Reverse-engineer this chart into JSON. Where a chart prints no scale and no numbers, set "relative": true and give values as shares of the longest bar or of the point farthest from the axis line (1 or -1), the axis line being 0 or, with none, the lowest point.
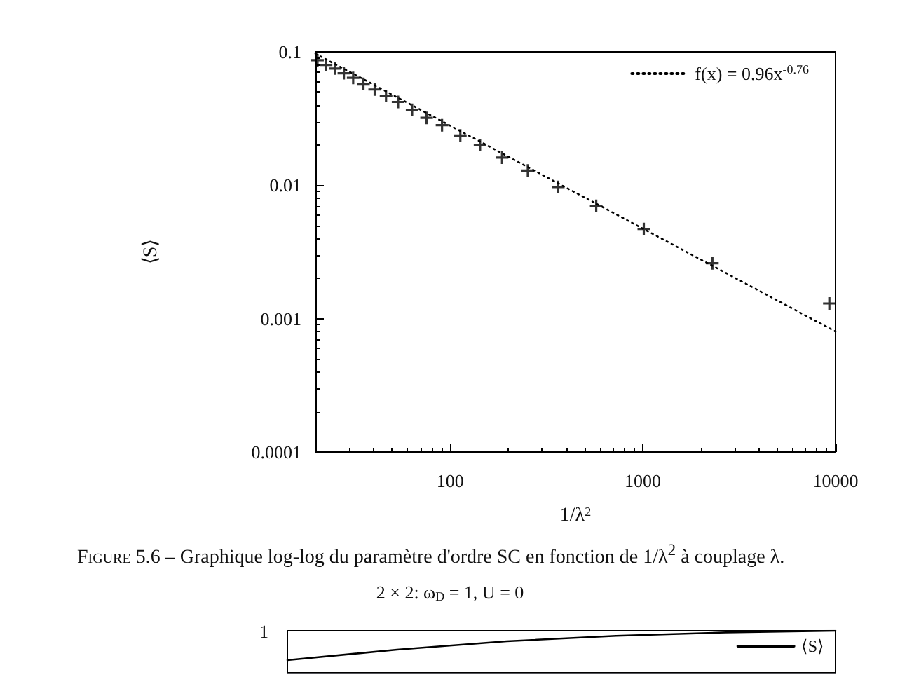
{
  "chart_data": [
    {
      "type": "scatter",
      "ylabel": "⟨S⟩",
      "xlabel": "1/λ$^{2}$",
      "log": "xy",
      "xlim": [
        20,
        10000
      ],
      "xticks": [
        100,
        1000,
        10000
      ],
      "ylim": [
        0.0001,
        0.1
      ],
      "yticks": [
        0.0001,
        0.001,
        0.01,
        0.1
      ],
      "grid": false,
      "legend": "top right",
      "marker": "cross",
      "series": [
        {
          "color": "#000000",
          "x": [
            20.5,
            22.7,
            25.3,
            28.1,
            31.4,
            35.5,
            40.6,
            46.5,
            53.7,
            63.5,
            75.5,
            90.8,
            113,
            143,
            186,
            253,
            364,
            573,
            1012,
            2296,
            9290
          ],
          "values": [
            0.0866,
            0.0798,
            0.075,
            0.0691,
            0.0638,
            0.0575,
            0.0522,
            0.0467,
            0.0421,
            0.0367,
            0.032,
            0.0282,
            0.0236,
            0.02,
            0.0161,
            0.0129,
            0.0097,
            0.007,
            0.0047,
            0.0026,
            0.0013
          ]
        },
        {
          "type": "line",
          "name": "f(x) = 0.96x$^{-0.76}$",
          "color": "#000000",
          "line_style": "dotted",
          "marker": "none",
          "x": [
            20,
            10000
          ],
          "values": [
            0.097,
            0.0008
          ]
        }
      ],
      "annotations": [
        "Figure 5.6 – Graphique log-log du paramètre d'ordre SC en fonction de 1/λ$^{2}$ à couplage λ."
      ]
    },
    {
      "type": "line",
      "title": "2 × 2: ω$_{D}$ = 1, U = 0",
      "relative": true,
      "legend": "top right",
      "categories": [
        null,
        null,
        null,
        null,
        null,
        null
      ],
      "series": [
        {
          "name": "⟨S⟩",
          "color": "#000000",
          "values": [
            0.3,
            0.55,
            0.75,
            0.88,
            0.96,
            1
          ]
        }
      ],
      "annotations": [
        "1"
      ]
    }
  ]
}
